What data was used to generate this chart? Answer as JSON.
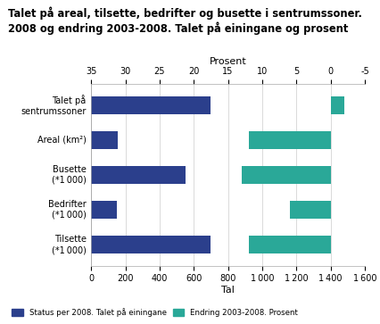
{
  "title": "Talet på areal, tilsette, bedrifter og busette i sentrumssoner.\n2008 og endring 2003-2008. Talet på einingane og prosent",
  "categories": [
    "Tilsette\n(*1 000)",
    "Bedrifter\n(*1 000)",
    "Busette\n(*1 000)",
    "Areal (km²)",
    "Talet på\nsentrumssoner"
  ],
  "blue_values_tal": [
    700,
    150,
    550,
    155,
    700
  ],
  "teal_values_prosent": [
    12,
    6,
    13,
    12,
    -2
  ],
  "tal_xlim": [
    0,
    1600
  ],
  "prosent_xlim": [
    35,
    -5
  ],
  "tal_ticks": [
    0,
    200,
    400,
    600,
    800,
    1000,
    1200,
    1400,
    1600
  ],
  "prosent_ticks": [
    35,
    30,
    25,
    20,
    15,
    10,
    5,
    0,
    -5
  ],
  "tal_ticklabels": [
    "0",
    "200",
    "400",
    "600",
    "800",
    "1 000",
    "1 200",
    "1 400",
    "1 600"
  ],
  "blue_color": "#2b3f8c",
  "teal_color": "#2aa898",
  "xlabel_bottom": "Tal",
  "xlabel_top": "Prosent",
  "legend_blue": "Status per 2008. Talet på einingane",
  "legend_teal": "Endring 2003-2008. Prosent",
  "bar_height": 0.5,
  "background_color": "#ffffff",
  "grid_color": "#cccccc"
}
